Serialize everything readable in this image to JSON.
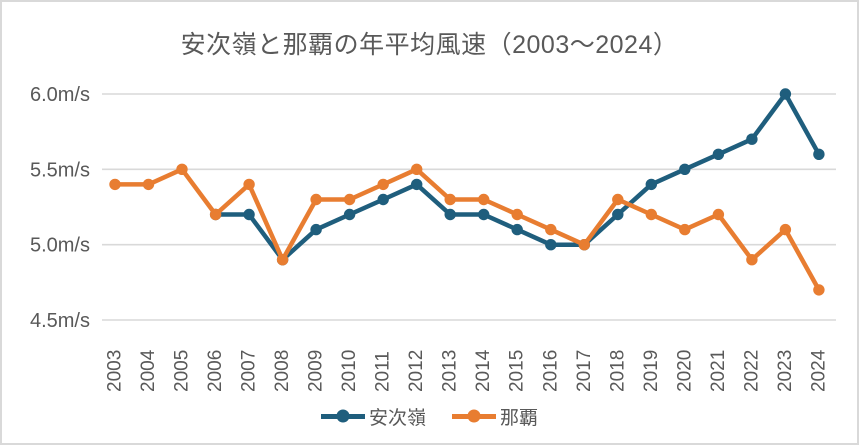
{
  "chart_data": {
    "type": "line",
    "title": "安次嶺と那覇の年平均風速（2003～2024）",
    "xlabel": "",
    "ylabel": "",
    "categories": [
      "2003",
      "2004",
      "2005",
      "2006",
      "2007",
      "2008",
      "2009",
      "2010",
      "2011",
      "2012",
      "2013",
      "2014",
      "2015",
      "2016",
      "2017",
      "2018",
      "2019",
      "2020",
      "2021",
      "2022",
      "2023",
      "2024"
    ],
    "series": [
      {
        "name": "安次嶺",
        "color": "#1f5e7d",
        "values": [
          null,
          null,
          null,
          5.2,
          5.2,
          4.9,
          5.1,
          5.2,
          5.3,
          5.4,
          5.2,
          5.2,
          5.1,
          5.0,
          5.0,
          5.2,
          5.4,
          5.5,
          5.6,
          5.7,
          6.0,
          5.6
        ]
      },
      {
        "name": "那覇",
        "color": "#e87d31",
        "values": [
          5.4,
          5.4,
          5.5,
          5.2,
          5.4,
          4.9,
          5.3,
          5.3,
          5.4,
          5.5,
          5.3,
          5.3,
          5.2,
          5.1,
          5.0,
          5.3,
          5.2,
          5.1,
          5.2,
          4.9,
          5.1,
          4.7
        ]
      }
    ],
    "y_ticks": [
      {
        "label": "6.0m/s",
        "value": 6.0
      },
      {
        "label": "5.5m/s",
        "value": 5.5
      },
      {
        "label": "5.0m/s",
        "value": 5.0
      },
      {
        "label": "4.5m/s",
        "value": 4.5
      }
    ],
    "ylim": [
      4.5,
      6.0
    ],
    "grid": true,
    "legend_position": "bottom"
  },
  "colors": {
    "text": "#595959",
    "grid": "#d9d9d9",
    "border": "#d9d9d9",
    "background": "#ffffff"
  }
}
